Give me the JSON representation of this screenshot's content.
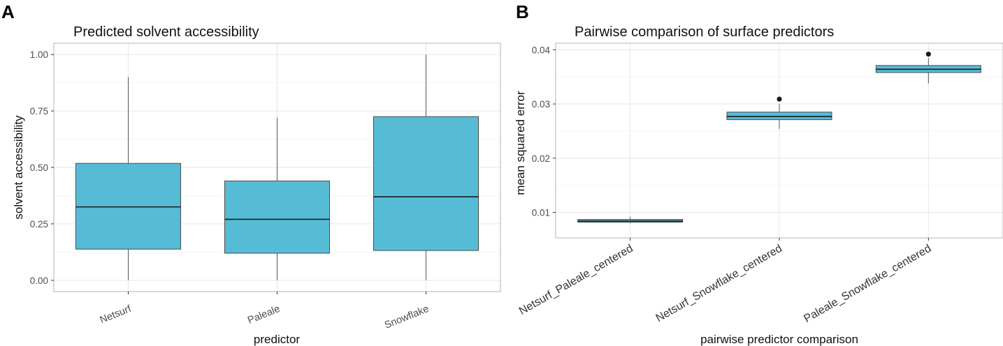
{
  "chart_data": [
    {
      "panel": "A",
      "type": "box",
      "title": "Predicted solvent accessibility",
      "xlabel": "predictor",
      "ylabel": "solvent accessibility",
      "ylim": [
        -0.05,
        1.05
      ],
      "yticks": [
        0.0,
        0.25,
        0.5,
        0.75,
        1.0
      ],
      "ytick_labels": [
        "0.00",
        "0.25",
        "0.50",
        "0.75",
        "1.00"
      ],
      "grid": true,
      "categories": [
        "Netsurf",
        "Paleale",
        "Snowflake"
      ],
      "boxes": [
        {
          "category": "Netsurf",
          "min": 0.0,
          "q1": 0.138,
          "median": 0.325,
          "q3": 0.518,
          "max": 0.9,
          "outliers": []
        },
        {
          "category": "Paleale",
          "min": 0.0,
          "q1": 0.12,
          "median": 0.27,
          "q3": 0.44,
          "max": 0.72,
          "outliers": []
        },
        {
          "category": "Snowflake",
          "min": 0.0,
          "q1": 0.132,
          "median": 0.37,
          "q3": 0.725,
          "max": 1.0,
          "outliers": []
        }
      ],
      "box_color": "#56bcd6"
    },
    {
      "panel": "B",
      "type": "box",
      "title": "Pairwise comparison of surface predictors",
      "xlabel": "pairwise predictor comparison",
      "ylabel": "mean squared error",
      "ylim": [
        0.0053,
        0.0412
      ],
      "yticks": [
        0.01,
        0.02,
        0.03,
        0.04
      ],
      "ytick_labels": [
        "0.01",
        "0.02",
        "0.03",
        "0.04"
      ],
      "grid": true,
      "categories": [
        "Netsurf_Paleale_centered",
        "Netsurf_Snowflake_centered",
        "Paleale_Snowflake_centered"
      ],
      "boxes": [
        {
          "category": "Netsurf_Paleale_centered",
          "min": 0.008,
          "q1": 0.0082,
          "median": 0.0084,
          "q3": 0.0087,
          "max": 0.0092,
          "outliers": []
        },
        {
          "category": "Netsurf_Snowflake_centered",
          "min": 0.0254,
          "q1": 0.0271,
          "median": 0.0277,
          "q3": 0.0285,
          "max": 0.03,
          "outliers": [
            0.0309
          ]
        },
        {
          "category": "Paleale_Snowflake_centered",
          "min": 0.0338,
          "q1": 0.0358,
          "median": 0.0364,
          "q3": 0.0371,
          "max": 0.0385,
          "outliers": [
            0.0392
          ]
        }
      ],
      "box_color": "#56bcd6"
    }
  ]
}
